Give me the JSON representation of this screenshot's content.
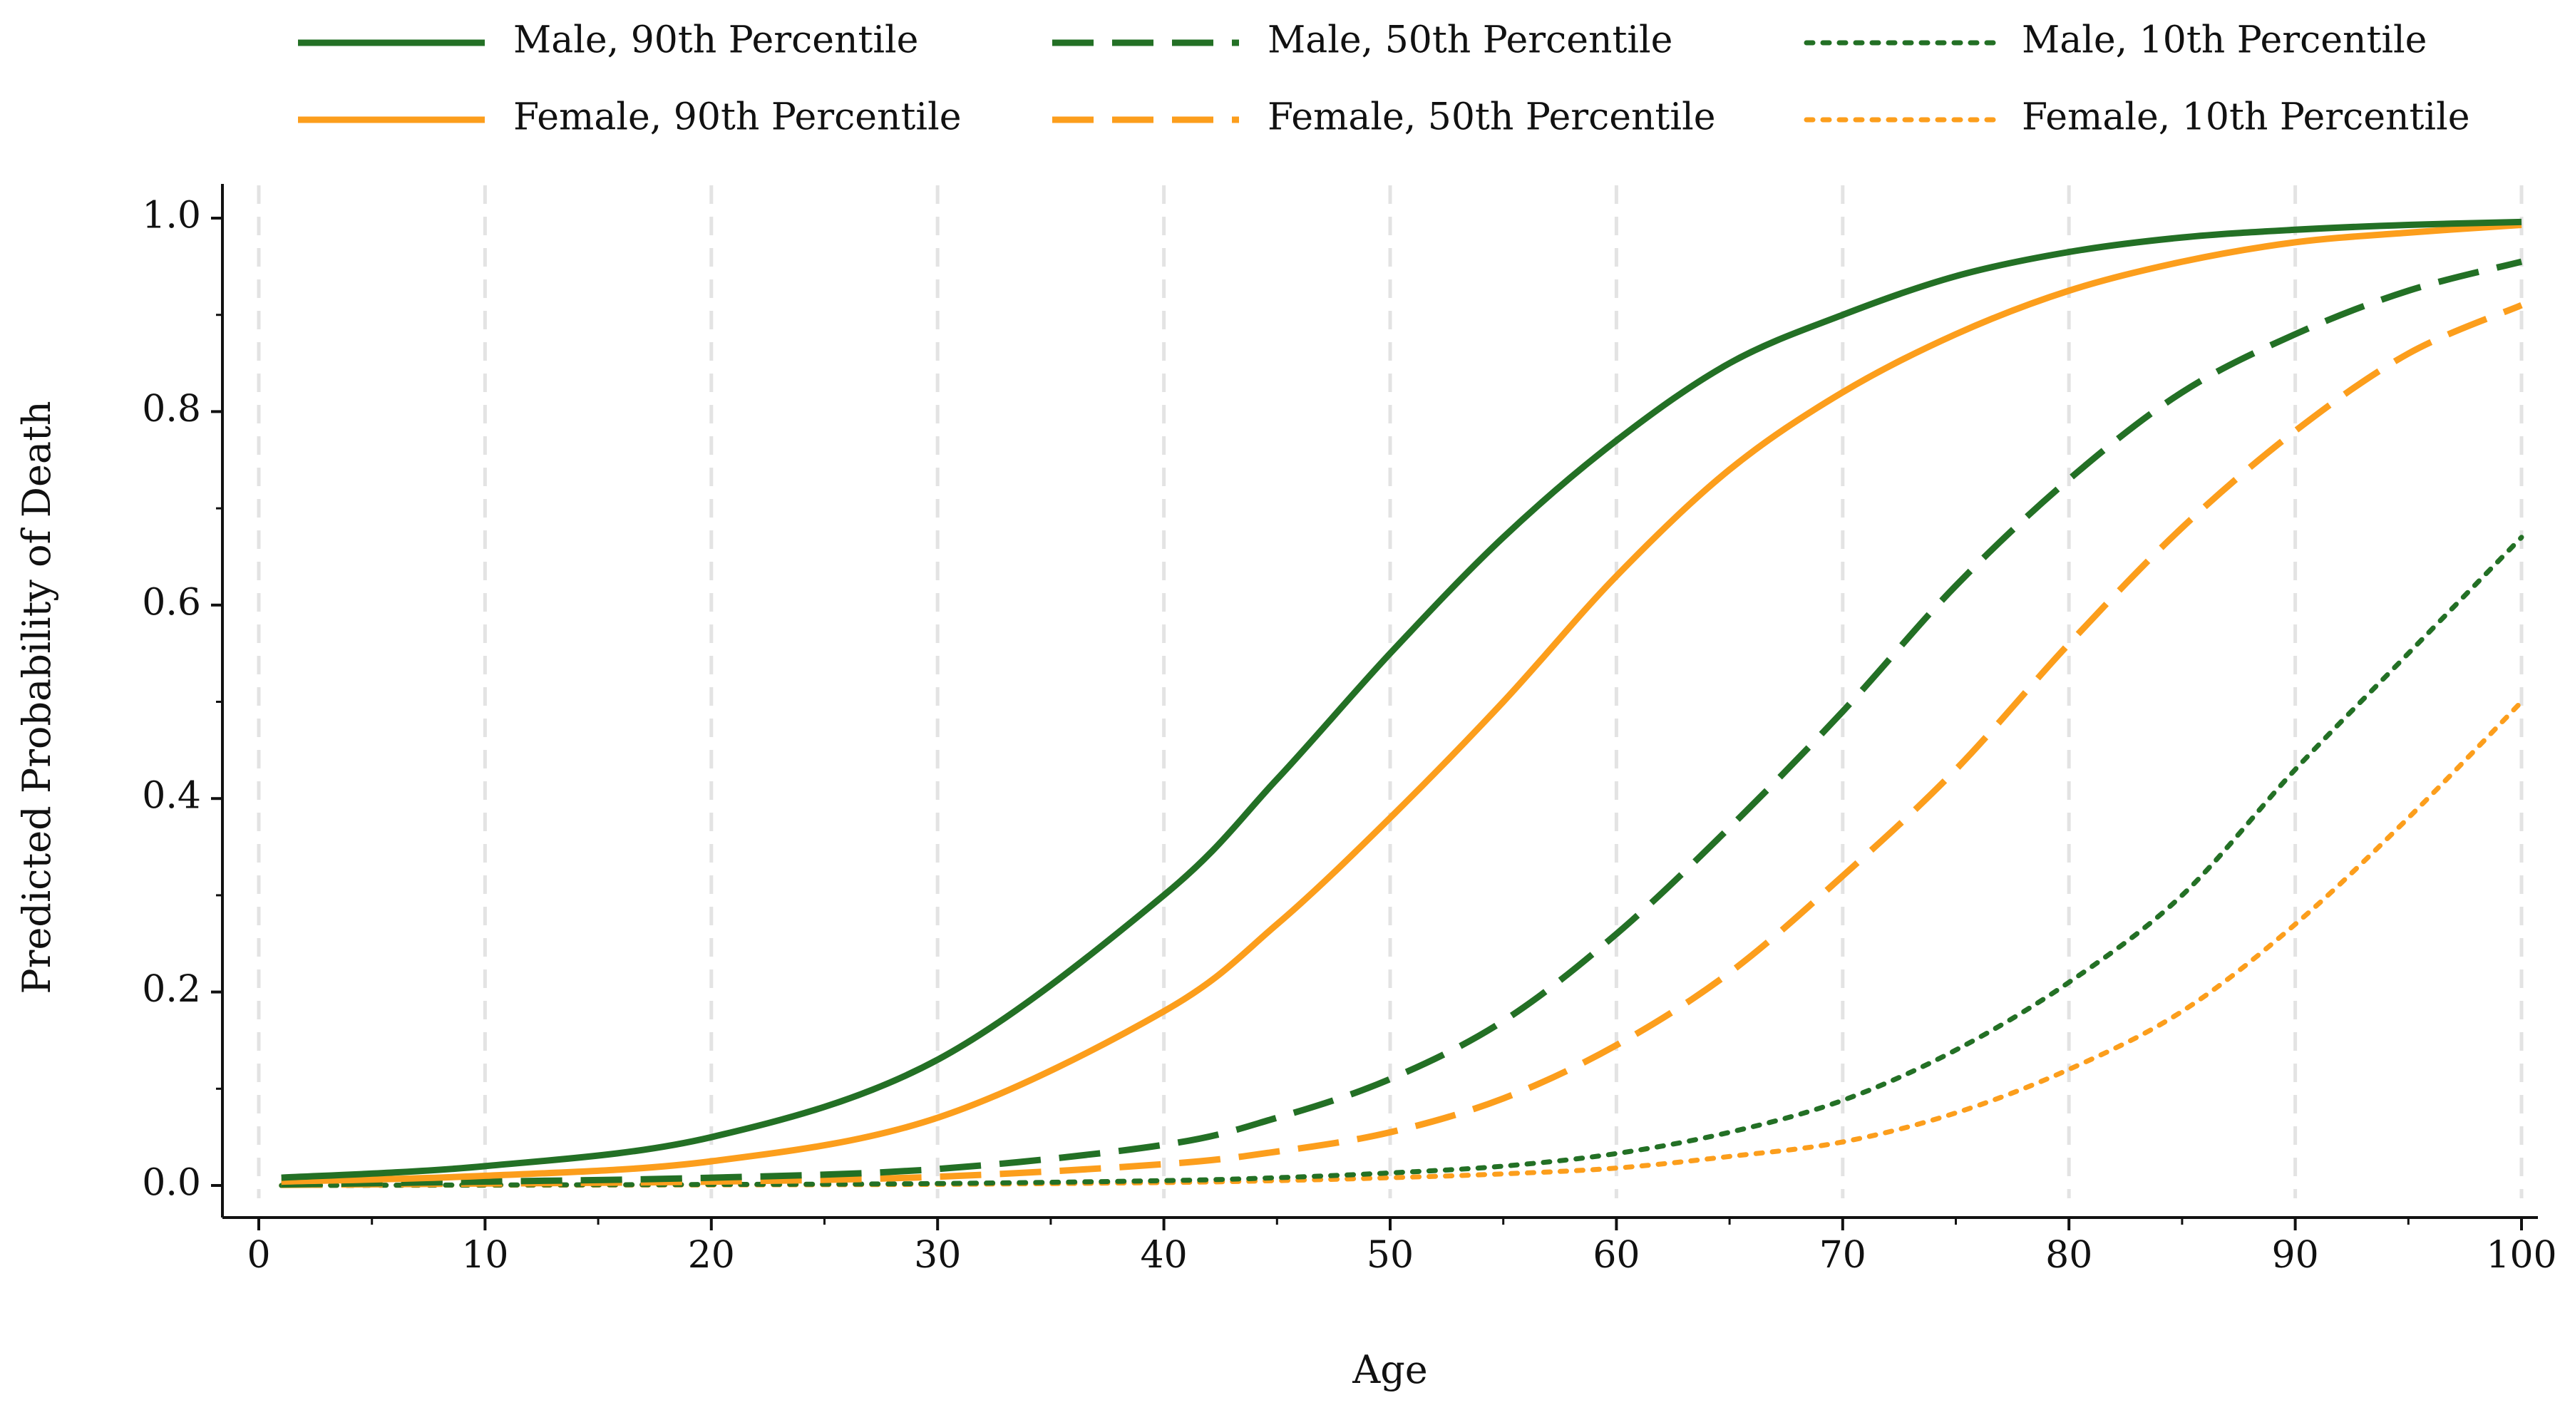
{
  "chart_data": {
    "type": "line",
    "title": "",
    "xlabel": "Age",
    "ylabel": "Predicted Probability of Death",
    "xlim": [
      0,
      100
    ],
    "ylim": [
      0,
      1.0
    ],
    "grid": "vertical dashed",
    "legend_placement": "top",
    "x_ticks": [
      0,
      10,
      20,
      30,
      40,
      50,
      60,
      70,
      80,
      90,
      100
    ],
    "x_tick_labels": [
      "0",
      "10",
      "20",
      "30",
      "40",
      "50",
      "60",
      "70",
      "80",
      "90",
      "100"
    ],
    "y_ticks": [
      0.0,
      0.2,
      0.4,
      0.6,
      0.8,
      1.0
    ],
    "y_tick_labels": [
      "0.0",
      "0.2",
      "0.4",
      "0.6",
      "0.8",
      "1.0"
    ],
    "x": [
      1,
      10,
      20,
      30,
      40,
      45,
      50,
      55,
      60,
      65,
      70,
      75,
      80,
      85,
      90,
      95,
      100
    ],
    "series": [
      {
        "name": "Male, 90th Percentile",
        "color": "#237025",
        "dash": "solid",
        "values": [
          0.008,
          0.02,
          0.05,
          0.13,
          0.3,
          0.42,
          0.55,
          0.67,
          0.77,
          0.85,
          0.9,
          0.94,
          0.965,
          0.98,
          0.988,
          0.993,
          0.996
        ]
      },
      {
        "name": "Female, 90th Percentile",
        "color": "#FC9E1C",
        "dash": "solid",
        "values": [
          0.004,
          0.01,
          0.025,
          0.07,
          0.18,
          0.27,
          0.38,
          0.5,
          0.63,
          0.74,
          0.82,
          0.88,
          0.925,
          0.955,
          0.975,
          0.985,
          0.993
        ]
      },
      {
        "name": "Male, 50th Percentile",
        "color": "#237025",
        "dash": "dashed",
        "values": [
          0.001,
          0.004,
          0.008,
          0.017,
          0.042,
          0.07,
          0.11,
          0.17,
          0.26,
          0.37,
          0.49,
          0.62,
          0.73,
          0.82,
          0.88,
          0.925,
          0.955
        ]
      },
      {
        "name": "Female, 50th Percentile",
        "color": "#FC9E1C",
        "dash": "dashed",
        "values": [
          0.0005,
          0.002,
          0.004,
          0.009,
          0.022,
          0.035,
          0.055,
          0.09,
          0.145,
          0.22,
          0.32,
          0.43,
          0.56,
          0.68,
          0.78,
          0.86,
          0.91
        ]
      },
      {
        "name": "Male, 10th Percentile",
        "color": "#237025",
        "dash": "dotted",
        "values": [
          0.0,
          0.0005,
          0.001,
          0.002,
          0.005,
          0.008,
          0.013,
          0.02,
          0.033,
          0.055,
          0.088,
          0.14,
          0.21,
          0.3,
          0.43,
          0.55,
          0.67
        ]
      },
      {
        "name": "Female, 10th Percentile",
        "color": "#FC9E1C",
        "dash": "dotted",
        "values": [
          0.0,
          0.0003,
          0.0006,
          0.0012,
          0.003,
          0.005,
          0.008,
          0.012,
          0.018,
          0.03,
          0.045,
          0.075,
          0.12,
          0.18,
          0.27,
          0.38,
          0.5
        ]
      }
    ]
  }
}
